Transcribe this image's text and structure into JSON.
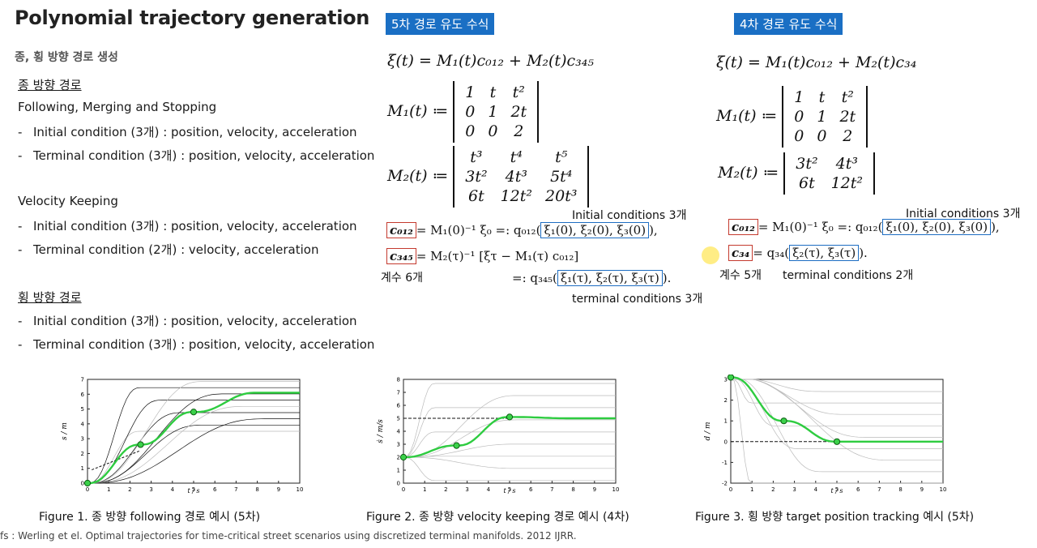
{
  "title": "Polynomial trajectory generation",
  "subtitle": "종, 횡 방향 경로 생성",
  "left": {
    "long_heading": "종 방향 경로",
    "following_heading": "Following, Merging and Stopping",
    "following_items": [
      "Initial condition (3개) : position, velocity, acceleration",
      "Terminal condition (3개) : position, velocity, acceleration"
    ],
    "velocity_heading": "Velocity Keeping",
    "velocity_items": [
      "Initial condition (3개) : position, velocity, acceleration",
      "Terminal condition (2개) : velocity, acceleration"
    ],
    "lat_heading": "횡 방향 경로",
    "lat_items": [
      "Initial condition (3개) : position, velocity, acceleration",
      "Terminal condition (3개) : position, velocity, acceleration"
    ],
    "dash": "-"
  },
  "fifth": {
    "badge": "5차 경로 유도 수식",
    "xi_eq": "ξ(t) = M₁(t)c₀₁₂ + M₂(t)c₃₄₅",
    "m1_label": "M₁(t) ≔",
    "m1": [
      [
        "1",
        "t",
        "t²"
      ],
      [
        "0",
        "1",
        "2t"
      ],
      [
        "0",
        "0",
        "2"
      ]
    ],
    "m2_label": "M₂(t) ≔",
    "m2": [
      [
        "t³",
        "t⁴",
        "t⁵"
      ],
      [
        "3t²",
        "4t³",
        "5t⁴"
      ],
      [
        "6t",
        "12t²",
        "20t³"
      ]
    ],
    "c012": "c₀₁₂",
    "c012_eq": "= M₁(0)⁻¹ ξ₀ =: q₀₁₂(",
    "init_box": "ξ₁(0), ξ₂(0), ξ₃(0)",
    "c012_tail": "),",
    "c345": "c₃₄₅",
    "c345_eq": "= M₂(τ)⁻¹ [ξτ − M₁(τ) c₀₁₂]",
    "q345_eq": "=: q₃₄₅(",
    "term_box": "ξ₁(τ), ξ₂(τ), ξ₃(τ)",
    "q345_tail": ").",
    "init_note": "Initial conditions 3개",
    "coef_note": "계수 6개",
    "term_note": "terminal conditions 3개"
  },
  "fourth": {
    "badge": "4차 경로 유도 수식",
    "xi_eq": "ξ(t) = M₁(t)c₀₁₂ + M₂(t)c₃₄",
    "m1_label": "M₁(t) ≔",
    "m1": [
      [
        "1",
        "t",
        "t²"
      ],
      [
        "0",
        "1",
        "2t"
      ],
      [
        "0",
        "0",
        "2"
      ]
    ],
    "m2_label": "M₂(t) ≔",
    "m2": [
      [
        "3t²",
        "4t³"
      ],
      [
        "6t",
        "12t²"
      ]
    ],
    "c012": "c₀₁₂",
    "c012_eq": "= M₁(0)⁻¹ ξ₀ =: q₀₁₂(",
    "init_box": "ξ₁(0), ξ₂(0), ξ₃(0)",
    "c012_tail": "),",
    "c34": "c₃₄",
    "c34_eq": "= q₃₄(",
    "term_box": "ξ₂(τ), ξ₃(τ)",
    "c34_tail": ").",
    "init_note": "Initial conditions 3개",
    "coef_note": "계수 5개",
    "term_note": "terminal conditions 2개"
  },
  "figures": {
    "fig1_caption": "Figure 1. 종 방향 following 경로 예시 (5차)",
    "fig2_caption": "Figure 2. 종 방향 velocity keeping 경로 예시 (4차)",
    "fig3_caption": "Figure 3. 횡 방향 target position tracking 예시 (5차)"
  },
  "chart_data": [
    {
      "type": "line",
      "title": "",
      "xlabel": "t / s",
      "ylabel": "s / m",
      "xlim": [
        0,
        10
      ],
      "ylim": [
        0,
        7
      ],
      "xticks": [
        "0",
        "1",
        "2",
        "3",
        "4",
        "5",
        "6",
        "7",
        "8",
        "9",
        "10"
      ],
      "yticks": [
        "0",
        "1",
        "2",
        "3",
        "4",
        "5",
        "6",
        "7"
      ],
      "highlight_points": [
        {
          "x": 0,
          "y": 0
        },
        {
          "x": 2.5,
          "y": 2.6
        },
        {
          "x": 5,
          "y": 4.8
        }
      ],
      "reference_line": "dashed",
      "series": "trajectory bundle"
    },
    {
      "type": "line",
      "title": "",
      "xlabel": "t / s",
      "ylabel": "ṡ / m/s",
      "xlim": [
        0,
        10
      ],
      "ylim": [
        0,
        8
      ],
      "xticks": [
        "0",
        "1",
        "2",
        "3",
        "4",
        "5",
        "6",
        "7",
        "8",
        "9",
        "10"
      ],
      "yticks": [
        "0",
        "1",
        "2",
        "3",
        "4",
        "5",
        "6",
        "7",
        "8"
      ],
      "highlight_points": [
        {
          "x": 0,
          "y": 2
        },
        {
          "x": 2.5,
          "y": 2.9
        },
        {
          "x": 5,
          "y": 5.1
        }
      ],
      "reference_value": 5,
      "series": "trajectory bundle"
    },
    {
      "type": "line",
      "title": "",
      "xlabel": "t / s",
      "ylabel": "d / m",
      "xlim": [
        0,
        10
      ],
      "ylim": [
        -2,
        3
      ],
      "xticks": [
        "0",
        "1",
        "2",
        "3",
        "4",
        "5",
        "6",
        "7",
        "8",
        "9",
        "10"
      ],
      "yticks": [
        "-2",
        "-1",
        "0",
        "1",
        "2",
        "3"
      ],
      "highlight_points": [
        {
          "x": 0,
          "y": 3.1
        },
        {
          "x": 2.5,
          "y": 1.0
        },
        {
          "x": 5,
          "y": 0
        }
      ],
      "reference_value": 0,
      "series": "trajectory bundle"
    }
  ],
  "refs": "fs : Werling et el. Optimal trajectories for time-critical street scenarios using discretized terminal manifolds. 2012 IJRR."
}
